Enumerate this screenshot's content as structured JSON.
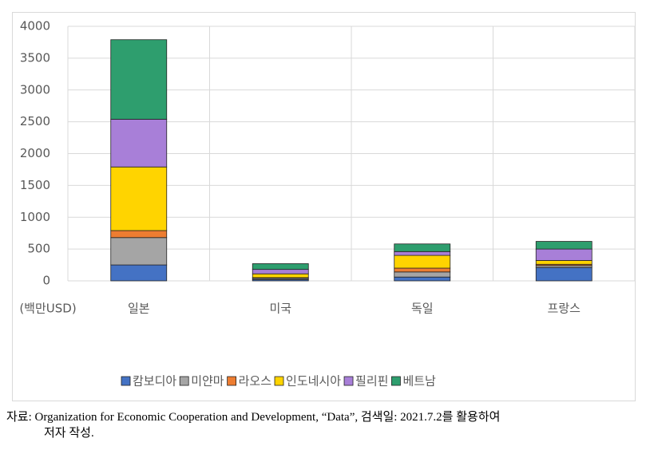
{
  "chart_data": {
    "type": "stacked_bar",
    "y_label": "(백만USD)",
    "categories": [
      "일본",
      "미국",
      "독일",
      "프랑스"
    ],
    "series": [
      {
        "name": "캄보디아",
        "color": "#4472c4",
        "values": [
          250,
          20,
          60,
          210
        ]
      },
      {
        "name": "미얀마",
        "color": "#a5a5a5",
        "values": [
          430,
          20,
          80,
          30
        ]
      },
      {
        "name": "라오스",
        "color": "#ed7d31",
        "values": [
          110,
          10,
          60,
          20
        ]
      },
      {
        "name": "인도네시아",
        "color": "#ffd400",
        "values": [
          1000,
          60,
          200,
          60
        ]
      },
      {
        "name": "필리핀",
        "color": "#a87fd8",
        "values": [
          750,
          70,
          60,
          180
        ]
      },
      {
        "name": "베트남",
        "color": "#2e9e6e",
        "values": [
          1250,
          90,
          120,
          120
        ]
      }
    ],
    "ylim": [
      0,
      4000
    ],
    "yticks": [
      0,
      500,
      1000,
      1500,
      2000,
      2500,
      3000,
      3500,
      4000
    ],
    "grid": true,
    "legend": "bottom"
  },
  "source": [
    "자료: Organization for Economic Cooperation and Development, “Data”, 검색일: 2021.7.2를 활용하여",
    "저자 작성."
  ]
}
